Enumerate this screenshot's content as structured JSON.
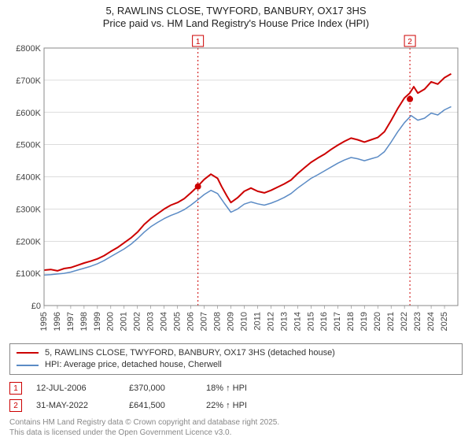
{
  "title_line1": "5, RAWLINS CLOSE, TWYFORD, BANBURY, OX17 3HS",
  "title_line2": "Price paid vs. HM Land Registry's House Price Index (HPI)",
  "chart": {
    "type": "line",
    "background_color": "#ffffff",
    "grid_color": "#bbbbbb",
    "border_color": "#888888",
    "x": {
      "min": 1995,
      "max": 2026,
      "ticks": [
        1995,
        1996,
        1997,
        1998,
        1999,
        2000,
        2001,
        2002,
        2003,
        2004,
        2005,
        2006,
        2007,
        2008,
        2009,
        2010,
        2011,
        2012,
        2013,
        2014,
        2015,
        2016,
        2017,
        2018,
        2019,
        2020,
        2021,
        2022,
        2023,
        2024,
        2025
      ],
      "label_fontsize": 11,
      "label_rotation": -90
    },
    "y": {
      "min": 0,
      "max": 800000,
      "ticks": [
        0,
        100000,
        200000,
        300000,
        400000,
        500000,
        600000,
        700000,
        800000
      ],
      "tick_labels": [
        "£0",
        "£100K",
        "£200K",
        "£300K",
        "£400K",
        "£500K",
        "£600K",
        "£700K",
        "£800K"
      ],
      "label_fontsize": 11
    },
    "series": [
      {
        "name": "price_paid",
        "color": "#cc0000",
        "line_width": 2,
        "data": [
          [
            1995.0,
            110000
          ],
          [
            1995.5,
            112000
          ],
          [
            1996.0,
            108000
          ],
          [
            1996.5,
            115000
          ],
          [
            1997.0,
            118000
          ],
          [
            1997.5,
            125000
          ],
          [
            1998.0,
            132000
          ],
          [
            1998.5,
            138000
          ],
          [
            1999.0,
            145000
          ],
          [
            1999.5,
            155000
          ],
          [
            2000.0,
            168000
          ],
          [
            2000.5,
            180000
          ],
          [
            2001.0,
            195000
          ],
          [
            2001.5,
            210000
          ],
          [
            2002.0,
            228000
          ],
          [
            2002.5,
            252000
          ],
          [
            2003.0,
            270000
          ],
          [
            2003.5,
            285000
          ],
          [
            2004.0,
            300000
          ],
          [
            2004.5,
            312000
          ],
          [
            2005.0,
            320000
          ],
          [
            2005.5,
            332000
          ],
          [
            2006.0,
            350000
          ],
          [
            2006.5,
            370000
          ],
          [
            2007.0,
            392000
          ],
          [
            2007.5,
            408000
          ],
          [
            2008.0,
            395000
          ],
          [
            2008.3,
            370000
          ],
          [
            2008.7,
            340000
          ],
          [
            2009.0,
            320000
          ],
          [
            2009.5,
            335000
          ],
          [
            2010.0,
            355000
          ],
          [
            2010.5,
            365000
          ],
          [
            2011.0,
            355000
          ],
          [
            2011.5,
            350000
          ],
          [
            2012.0,
            358000
          ],
          [
            2012.5,
            368000
          ],
          [
            2013.0,
            378000
          ],
          [
            2013.5,
            390000
          ],
          [
            2014.0,
            410000
          ],
          [
            2014.5,
            428000
          ],
          [
            2015.0,
            445000
          ],
          [
            2015.5,
            458000
          ],
          [
            2016.0,
            470000
          ],
          [
            2016.5,
            485000
          ],
          [
            2017.0,
            498000
          ],
          [
            2017.5,
            510000
          ],
          [
            2018.0,
            520000
          ],
          [
            2018.5,
            515000
          ],
          [
            2019.0,
            508000
          ],
          [
            2019.5,
            515000
          ],
          [
            2020.0,
            522000
          ],
          [
            2020.5,
            540000
          ],
          [
            2021.0,
            575000
          ],
          [
            2021.5,
            612000
          ],
          [
            2022.0,
            645000
          ],
          [
            2022.4,
            660000
          ],
          [
            2022.7,
            680000
          ],
          [
            2023.0,
            660000
          ],
          [
            2023.5,
            672000
          ],
          [
            2024.0,
            695000
          ],
          [
            2024.5,
            688000
          ],
          [
            2025.0,
            708000
          ],
          [
            2025.5,
            720000
          ]
        ]
      },
      {
        "name": "hpi",
        "color": "#5b8bc5",
        "line_width": 1.5,
        "data": [
          [
            1995.0,
            95000
          ],
          [
            1995.5,
            96000
          ],
          [
            1996.0,
            98000
          ],
          [
            1996.5,
            100000
          ],
          [
            1997.0,
            104000
          ],
          [
            1997.5,
            110000
          ],
          [
            1998.0,
            116000
          ],
          [
            1998.5,
            122000
          ],
          [
            1999.0,
            130000
          ],
          [
            1999.5,
            140000
          ],
          [
            2000.0,
            152000
          ],
          [
            2000.5,
            164000
          ],
          [
            2001.0,
            176000
          ],
          [
            2001.5,
            190000
          ],
          [
            2002.0,
            208000
          ],
          [
            2002.5,
            228000
          ],
          [
            2003.0,
            245000
          ],
          [
            2003.5,
            258000
          ],
          [
            2004.0,
            270000
          ],
          [
            2004.5,
            280000
          ],
          [
            2005.0,
            288000
          ],
          [
            2005.5,
            298000
          ],
          [
            2006.0,
            312000
          ],
          [
            2006.5,
            328000
          ],
          [
            2007.0,
            345000
          ],
          [
            2007.5,
            358000
          ],
          [
            2008.0,
            348000
          ],
          [
            2008.5,
            318000
          ],
          [
            2009.0,
            290000
          ],
          [
            2009.5,
            300000
          ],
          [
            2010.0,
            315000
          ],
          [
            2010.5,
            322000
          ],
          [
            2011.0,
            316000
          ],
          [
            2011.5,
            312000
          ],
          [
            2012.0,
            318000
          ],
          [
            2012.5,
            326000
          ],
          [
            2013.0,
            336000
          ],
          [
            2013.5,
            348000
          ],
          [
            2014.0,
            365000
          ],
          [
            2014.5,
            380000
          ],
          [
            2015.0,
            395000
          ],
          [
            2015.5,
            406000
          ],
          [
            2016.0,
            418000
          ],
          [
            2016.5,
            430000
          ],
          [
            2017.0,
            442000
          ],
          [
            2017.5,
            452000
          ],
          [
            2018.0,
            460000
          ],
          [
            2018.5,
            456000
          ],
          [
            2019.0,
            450000
          ],
          [
            2019.5,
            456000
          ],
          [
            2020.0,
            462000
          ],
          [
            2020.5,
            478000
          ],
          [
            2021.0,
            508000
          ],
          [
            2021.5,
            540000
          ],
          [
            2022.0,
            568000
          ],
          [
            2022.5,
            590000
          ],
          [
            2023.0,
            576000
          ],
          [
            2023.5,
            582000
          ],
          [
            2024.0,
            598000
          ],
          [
            2024.5,
            592000
          ],
          [
            2025.0,
            608000
          ],
          [
            2025.5,
            618000
          ]
        ]
      }
    ],
    "markers": [
      {
        "n": "1",
        "x": 2006.53,
        "y": 370000,
        "dot_color": "#cc0000",
        "line_color": "#cc0000"
      },
      {
        "n": "2",
        "x": 2022.41,
        "y": 641500,
        "dot_color": "#cc0000",
        "line_color": "#cc0000"
      }
    ]
  },
  "legend": {
    "items": [
      {
        "color": "#cc0000",
        "label": "5, RAWLINS CLOSE, TWYFORD, BANBURY, OX17 3HS (detached house)"
      },
      {
        "color": "#5b8bc5",
        "label": "HPI: Average price, detached house, Cherwell"
      }
    ]
  },
  "transactions": [
    {
      "n": "1",
      "date": "12-JUL-2006",
      "price": "£370,000",
      "delta": "18% ↑ HPI"
    },
    {
      "n": "2",
      "date": "31-MAY-2022",
      "price": "£641,500",
      "delta": "22% ↑ HPI"
    }
  ],
  "footnote_line1": "Contains HM Land Registry data © Crown copyright and database right 2025.",
  "footnote_line2": "This data is licensed under the Open Government Licence v3.0."
}
